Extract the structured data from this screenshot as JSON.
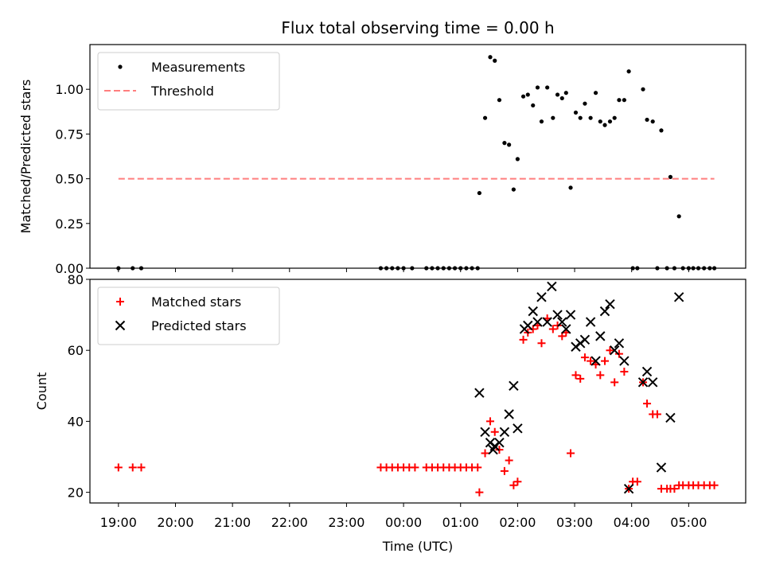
{
  "chart_data": {
    "type": "scatter",
    "title": "Flux total observing time = 0.00 h",
    "xlabel": "Time (UTC)",
    "x_ticks": [
      "19:00",
      "20:00",
      "21:00",
      "22:00",
      "23:00",
      "00:00",
      "01:00",
      "02:00",
      "03:00",
      "04:00",
      "05:00"
    ],
    "x_range_hours": [
      18.5,
      30.0
    ],
    "panels": [
      {
        "ylabel": "Matched/Predicted stars",
        "ylim": [
          0,
          1.25
        ],
        "y_ticks": [
          "0.00",
          "0.25",
          "0.50",
          "0.75",
          "1.00"
        ],
        "legend": "top-left",
        "series": [
          {
            "name": "Measurements",
            "marker": "dot",
            "color": "#000000",
            "points": [
              [
                19.0,
                0
              ],
              [
                19.25,
                0
              ],
              [
                19.4,
                0
              ],
              [
                23.6,
                0
              ],
              [
                23.7,
                0
              ],
              [
                23.8,
                0
              ],
              [
                23.9,
                0
              ],
              [
                24.0,
                0
              ],
              [
                24.15,
                0
              ],
              [
                24.4,
                0
              ],
              [
                24.5,
                0
              ],
              [
                24.6,
                0
              ],
              [
                24.7,
                0
              ],
              [
                24.8,
                0
              ],
              [
                24.9,
                0
              ],
              [
                25.0,
                0
              ],
              [
                25.1,
                0
              ],
              [
                25.2,
                0
              ],
              [
                25.3,
                0
              ],
              [
                25.33,
                0.42
              ],
              [
                25.43,
                0.84
              ],
              [
                25.52,
                1.18
              ],
              [
                25.6,
                1.16
              ],
              [
                25.68,
                0.94
              ],
              [
                25.77,
                0.7
              ],
              [
                25.85,
                0.69
              ],
              [
                25.93,
                0.44
              ],
              [
                26.0,
                0.61
              ],
              [
                26.1,
                0.96
              ],
              [
                26.18,
                0.97
              ],
              [
                26.27,
                0.91
              ],
              [
                26.35,
                1.01
              ],
              [
                26.42,
                0.82
              ],
              [
                26.52,
                1.01
              ],
              [
                26.62,
                0.84
              ],
              [
                26.7,
                0.97
              ],
              [
                26.78,
                0.95
              ],
              [
                26.85,
                0.98
              ],
              [
                26.93,
                0.45
              ],
              [
                27.02,
                0.87
              ],
              [
                27.1,
                0.84
              ],
              [
                27.18,
                0.92
              ],
              [
                27.28,
                0.84
              ],
              [
                27.37,
                0.98
              ],
              [
                27.45,
                0.82
              ],
              [
                27.53,
                0.8
              ],
              [
                27.62,
                0.82
              ],
              [
                27.7,
                0.84
              ],
              [
                27.78,
                0.94
              ],
              [
                27.87,
                0.94
              ],
              [
                27.95,
                1.1
              ],
              [
                28.02,
                0
              ],
              [
                28.1,
                0
              ],
              [
                28.2,
                1.0
              ],
              [
                28.27,
                0.83
              ],
              [
                28.37,
                0.82
              ],
              [
                28.45,
                0
              ],
              [
                28.52,
                0.77
              ],
              [
                28.62,
                0
              ],
              [
                28.68,
                0.51
              ],
              [
                28.75,
                0
              ],
              [
                28.83,
                0.29
              ],
              [
                28.9,
                0
              ],
              [
                29.0,
                0
              ],
              [
                29.08,
                0
              ],
              [
                29.17,
                0
              ],
              [
                29.27,
                0
              ],
              [
                29.37,
                0
              ],
              [
                29.45,
                0
              ]
            ]
          },
          {
            "name": "Threshold",
            "marker": "dashed-line",
            "color": "#ff7f7f",
            "points": [
              [
                19.0,
                0.5
              ],
              [
                29.45,
                0.5
              ]
            ]
          }
        ]
      },
      {
        "ylabel": "Count",
        "ylim": [
          17,
          80
        ],
        "y_ticks": [
          "20",
          "40",
          "60",
          "80"
        ],
        "legend": "top-left",
        "series": [
          {
            "name": "Matched stars",
            "marker": "plus",
            "color": "#ff0000",
            "points": [
              [
                19.0,
                27
              ],
              [
                19.25,
                27
              ],
              [
                19.4,
                27
              ],
              [
                23.6,
                27
              ],
              [
                23.7,
                27
              ],
              [
                23.8,
                27
              ],
              [
                23.9,
                27
              ],
              [
                24.0,
                27
              ],
              [
                24.1,
                27
              ],
              [
                24.2,
                27
              ],
              [
                24.4,
                27
              ],
              [
                24.5,
                27
              ],
              [
                24.6,
                27
              ],
              [
                24.7,
                27
              ],
              [
                24.8,
                27
              ],
              [
                24.9,
                27
              ],
              [
                25.0,
                27
              ],
              [
                25.1,
                27
              ],
              [
                25.2,
                27
              ],
              [
                25.3,
                27
              ],
              [
                25.33,
                20
              ],
              [
                25.43,
                31
              ],
              [
                25.52,
                40
              ],
              [
                25.6,
                37
              ],
              [
                25.68,
                32
              ],
              [
                25.77,
                26
              ],
              [
                25.85,
                29
              ],
              [
                25.93,
                22
              ],
              [
                26.0,
                23
              ],
              [
                26.1,
                63
              ],
              [
                26.18,
                65
              ],
              [
                26.27,
                66
              ],
              [
                26.35,
                67
              ],
              [
                26.42,
                62
              ],
              [
                26.52,
                69
              ],
              [
                26.62,
                66
              ],
              [
                26.7,
                67
              ],
              [
                26.78,
                64
              ],
              [
                26.85,
                65
              ],
              [
                26.93,
                31
              ],
              [
                27.02,
                53
              ],
              [
                27.1,
                52
              ],
              [
                27.18,
                58
              ],
              [
                27.28,
                57
              ],
              [
                27.37,
                56
              ],
              [
                27.45,
                53
              ],
              [
                27.53,
                57
              ],
              [
                27.62,
                60
              ],
              [
                27.7,
                51
              ],
              [
                27.78,
                59
              ],
              [
                27.87,
                54
              ],
              [
                27.95,
                21
              ],
              [
                28.02,
                23
              ],
              [
                28.1,
                23
              ],
              [
                28.2,
                51
              ],
              [
                28.27,
                45
              ],
              [
                28.37,
                42
              ],
              [
                28.45,
                42
              ],
              [
                28.52,
                21
              ],
              [
                28.62,
                21
              ],
              [
                28.68,
                21
              ],
              [
                28.75,
                21
              ],
              [
                28.83,
                22
              ],
              [
                28.9,
                22
              ],
              [
                29.0,
                22
              ],
              [
                29.08,
                22
              ],
              [
                29.17,
                22
              ],
              [
                29.27,
                22
              ],
              [
                29.37,
                22
              ],
              [
                29.45,
                22
              ]
            ]
          },
          {
            "name": "Predicted stars",
            "marker": "x",
            "color": "#000000",
            "points": [
              [
                25.33,
                48
              ],
              [
                25.43,
                37
              ],
              [
                25.52,
                34
              ],
              [
                25.57,
                32
              ],
              [
                25.6,
                33
              ],
              [
                25.68,
                34
              ],
              [
                25.77,
                37
              ],
              [
                25.85,
                42
              ],
              [
                25.93,
                50
              ],
              [
                26.0,
                38
              ],
              [
                26.12,
                66
              ],
              [
                26.18,
                67
              ],
              [
                26.27,
                71
              ],
              [
                26.35,
                68
              ],
              [
                26.42,
                75
              ],
              [
                26.52,
                68
              ],
              [
                26.6,
                78
              ],
              [
                26.7,
                70
              ],
              [
                26.78,
                68
              ],
              [
                26.85,
                66
              ],
              [
                26.93,
                70
              ],
              [
                27.02,
                61
              ],
              [
                27.1,
                62
              ],
              [
                27.18,
                63
              ],
              [
                27.28,
                68
              ],
              [
                27.37,
                57
              ],
              [
                27.45,
                64
              ],
              [
                27.53,
                71
              ],
              [
                27.62,
                73
              ],
              [
                27.7,
                60
              ],
              [
                27.78,
                62
              ],
              [
                27.87,
                57
              ],
              [
                27.95,
                21
              ],
              [
                28.2,
                51
              ],
              [
                28.27,
                54
              ],
              [
                28.37,
                51
              ],
              [
                28.52,
                27
              ],
              [
                28.68,
                41
              ],
              [
                28.83,
                75
              ]
            ]
          }
        ]
      }
    ]
  }
}
